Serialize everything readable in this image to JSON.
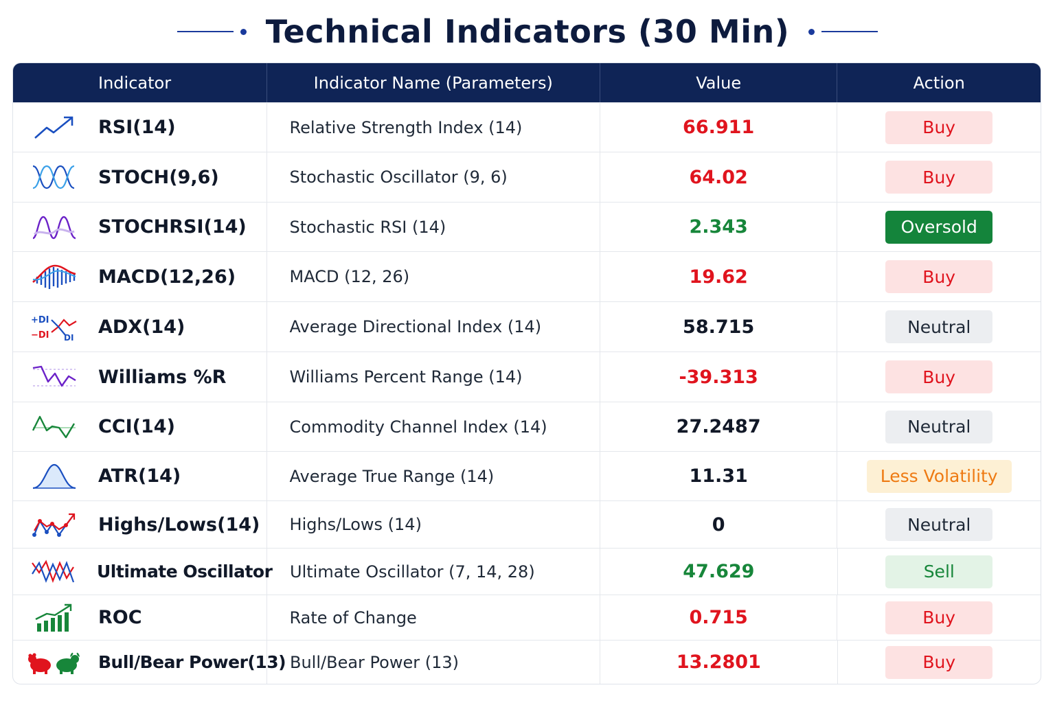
{
  "title": "Technical Indicators (30 Min)",
  "columns": {
    "indicator": "Indicator",
    "name": "Indicator Name (Parameters)",
    "value": "Value",
    "action": "Action"
  },
  "rows": [
    {
      "indicator": "RSI(14)",
      "name": "Relative Strength Index (14)",
      "value": "66.911",
      "action": "Buy",
      "icon": "trend-up-icon"
    },
    {
      "indicator": "STOCH(9,6)",
      "name": "Stochastic Oscillator (9, 6)",
      "value": "64.02",
      "action": "Buy",
      "icon": "stochastic-wave-icon"
    },
    {
      "indicator": "STOCHRSI(14)",
      "name": "Stochastic RSI (14)",
      "value": "2.343",
      "action": "Oversold",
      "icon": "stochrsi-wave-icon"
    },
    {
      "indicator": "MACD(12,26)",
      "name": "MACD (12, 26)",
      "value": "19.62",
      "action": "Buy",
      "icon": "macd-histogram-icon"
    },
    {
      "indicator": "ADX(14)",
      "name": "Average Directional Index (14)",
      "value": "58.715",
      "action": "Neutral",
      "icon": "adx-di-icon"
    },
    {
      "indicator": "Williams %R",
      "name": "Williams Percent Range (14)",
      "value": "-39.313",
      "action": "Buy",
      "icon": "williams-zigzag-icon"
    },
    {
      "indicator": "CCI(14)",
      "name": "Commodity Channel Index (14)",
      "value": "27.2487",
      "action": "Neutral",
      "icon": "cci-wave-icon"
    },
    {
      "indicator": "ATR(14)",
      "name": "Average True Range (14)",
      "value": "11.31",
      "action": "Less Volatility",
      "icon": "bell-curve-icon"
    },
    {
      "indicator": "Highs/Lows(14)",
      "name": "Highs/Lows (14)",
      "value": "0",
      "action": "Neutral",
      "icon": "highs-lows-icon"
    },
    {
      "indicator": "Ultimate Oscillator",
      "name": "Ultimate Oscillator (7, 14, 28)",
      "value": "47.629",
      "action": "Sell",
      "icon": "ultimate-oscillator-icon"
    },
    {
      "indicator": "ROC",
      "name": "Rate of Change",
      "value": "0.715",
      "action": "Buy",
      "icon": "growth-bars-icon"
    },
    {
      "indicator": "Bull/Bear Power(13)",
      "name": "Bull/Bear Power (13)",
      "value": "13.2801",
      "action": "Buy",
      "icon": "bull-bear-icon"
    }
  ],
  "colors": {
    "header_bg": "#0f2456",
    "buy": "#e0141e",
    "sell": "#17863a",
    "oversold_bg": "#14843b",
    "neutral_bg": "#eceef1",
    "volatility": "#ee7a12"
  }
}
